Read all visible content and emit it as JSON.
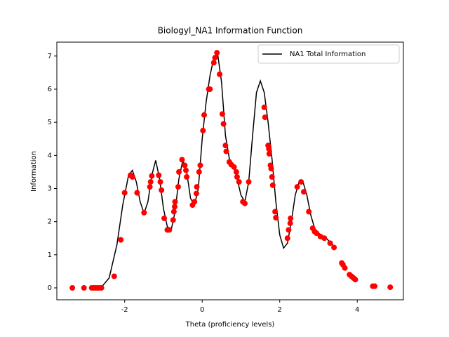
{
  "chart_data": {
    "type": "line",
    "title": "Biologyl_NA1 Information Function",
    "x_label": "Theta (proficiency levels)",
    "y_label": "Information",
    "xlim": [
      -3.75,
      5.19
    ],
    "ylim": [
      -0.36,
      7.42
    ],
    "xticks": [
      -2,
      0,
      2,
      4
    ],
    "yticks": [
      0,
      1,
      2,
      3,
      4,
      5,
      6,
      7
    ],
    "grid": false,
    "legend": "upper right",
    "series": [
      {
        "name": "NA1 Total Information",
        "color": "#000000",
        "x": [
          -2.9,
          -2.6,
          -2.4,
          -2.2,
          -2.05,
          -1.9,
          -1.8,
          -1.7,
          -1.6,
          -1.5,
          -1.4,
          -1.3,
          -1.2,
          -1.1,
          -1.0,
          -0.9,
          -0.8,
          -0.7,
          -0.6,
          -0.5,
          -0.4,
          -0.3,
          -0.2,
          -0.1,
          0.0,
          0.1,
          0.2,
          0.3,
          0.4,
          0.5,
          0.6,
          0.7,
          0.8,
          0.9,
          1.0,
          1.1,
          1.2,
          1.3,
          1.4,
          1.5,
          1.6,
          1.7,
          1.8,
          1.9,
          2.0,
          2.1,
          2.2,
          2.3,
          2.4,
          2.5,
          2.6,
          2.7,
          2.8,
          2.9,
          3.0,
          3.2,
          3.4
        ],
        "values": [
          0,
          0.02,
          0.3,
          1.3,
          2.5,
          3.4,
          3.55,
          3.2,
          2.6,
          2.25,
          2.6,
          3.4,
          3.85,
          3.3,
          2.4,
          1.85,
          1.75,
          2.3,
          3.3,
          3.85,
          3.5,
          2.7,
          2.5,
          3.0,
          4.5,
          5.6,
          6.4,
          6.95,
          7.05,
          6.2,
          4.6,
          3.9,
          3.7,
          3.3,
          2.8,
          2.6,
          3.2,
          4.6,
          5.9,
          6.25,
          5.9,
          5.0,
          3.9,
          2.6,
          1.6,
          1.2,
          1.35,
          2.0,
          2.8,
          3.2,
          3.2,
          2.8,
          2.2,
          1.8,
          1.65,
          1.5,
          1.25
        ]
      }
    ],
    "points": {
      "color": "#ff0000",
      "x": [
        -3.35,
        -3.05,
        -2.85,
        -2.8,
        -2.75,
        -2.7,
        -2.65,
        -2.6,
        -2.27,
        -2.1,
        -2.0,
        -1.85,
        -1.8,
        -1.68,
        -1.5,
        -1.35,
        -1.33,
        -1.3,
        -1.12,
        -1.08,
        -1.05,
        -0.98,
        -0.9,
        -0.85,
        -0.75,
        -0.73,
        -0.71,
        -0.7,
        -0.62,
        -0.6,
        -0.52,
        -0.45,
        -0.42,
        -0.4,
        -0.25,
        -0.2,
        -0.15,
        -0.14,
        -0.08,
        -0.05,
        0.02,
        0.05,
        0.17,
        0.2,
        0.3,
        0.33,
        0.38,
        0.45,
        0.52,
        0.55,
        0.6,
        0.62,
        0.7,
        0.75,
        0.82,
        0.88,
        0.9,
        0.95,
        1.05,
        1.1,
        1.2,
        1.6,
        1.62,
        1.7,
        1.72,
        1.73,
        1.76,
        1.78,
        1.8,
        1.82,
        1.88,
        1.9,
        2.2,
        2.23,
        2.27,
        2.28,
        2.45,
        2.55,
        2.62,
        2.75,
        2.85,
        2.9,
        2.95,
        3.05,
        3.15,
        3.3,
        3.4,
        3.6,
        3.63,
        3.68,
        3.8,
        3.85,
        3.9,
        3.95,
        4.4,
        4.45,
        4.85
      ],
      "values": [
        0,
        0,
        0,
        0,
        0,
        0,
        0,
        0,
        0.35,
        1.45,
        2.87,
        3.4,
        3.35,
        2.87,
        2.27,
        3.05,
        3.2,
        3.38,
        3.4,
        3.2,
        2.95,
        2.1,
        1.75,
        1.75,
        2.05,
        2.3,
        2.45,
        2.6,
        3.05,
        3.5,
        3.87,
        3.7,
        3.55,
        3.35,
        2.5,
        2.6,
        2.85,
        3.05,
        3.5,
        3.7,
        4.75,
        5.22,
        6.0,
        6.0,
        6.8,
        6.95,
        7.1,
        6.45,
        5.25,
        4.95,
        4.3,
        4.12,
        3.8,
        3.72,
        3.65,
        3.5,
        3.35,
        3.2,
        2.6,
        2.55,
        3.2,
        5.45,
        5.15,
        4.3,
        4.2,
        4.05,
        3.7,
        3.6,
        3.35,
        3.1,
        2.3,
        2.12,
        1.5,
        1.75,
        1.95,
        2.1,
        3.05,
        3.2,
        2.9,
        2.3,
        1.8,
        1.7,
        1.65,
        1.55,
        1.5,
        1.35,
        1.22,
        0.75,
        0.7,
        0.6,
        0.4,
        0.35,
        0.3,
        0.25,
        0.05,
        0.05,
        0.02
      ]
    }
  }
}
